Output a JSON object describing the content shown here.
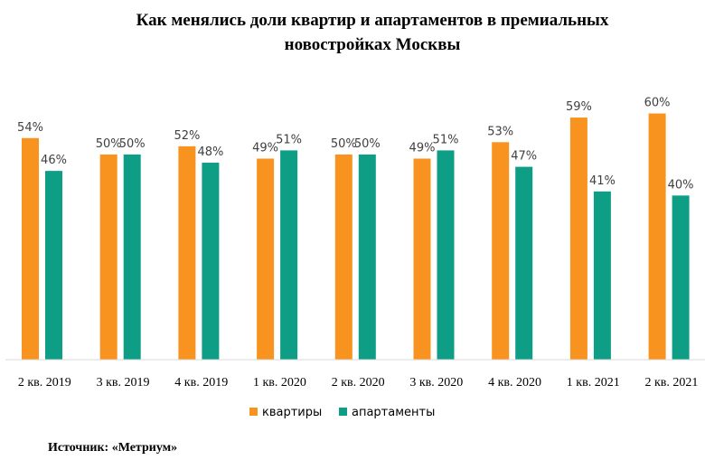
{
  "chart_data": {
    "type": "bar",
    "title_line1": "Как менялись доли квартир и апартаментов  в премиальных",
    "title_line2": "новостройках  Москвы",
    "categories": [
      "2 кв. 2019",
      "3 кв. 2019",
      "4 кв. 2019",
      "1 кв. 2020",
      "2 кв. 2020",
      "3 кв. 2020",
      "4 кв. 2020",
      "1 кв. 2021",
      "2 кв. 2021"
    ],
    "series": [
      {
        "name": "квартиры",
        "color": "#F7931E",
        "values": [
          54,
          50,
          52,
          49,
          50,
          49,
          53,
          59,
          60
        ]
      },
      {
        "name": "апартаменты",
        "color": "#0E9E86",
        "values": [
          46,
          50,
          48,
          51,
          50,
          51,
          47,
          41,
          40
        ]
      }
    ],
    "value_suffix": "%",
    "ylim": [
      0,
      61
    ],
    "grid": false,
    "legend_position": "bottom",
    "source": "Источник: «Метриум»"
  }
}
